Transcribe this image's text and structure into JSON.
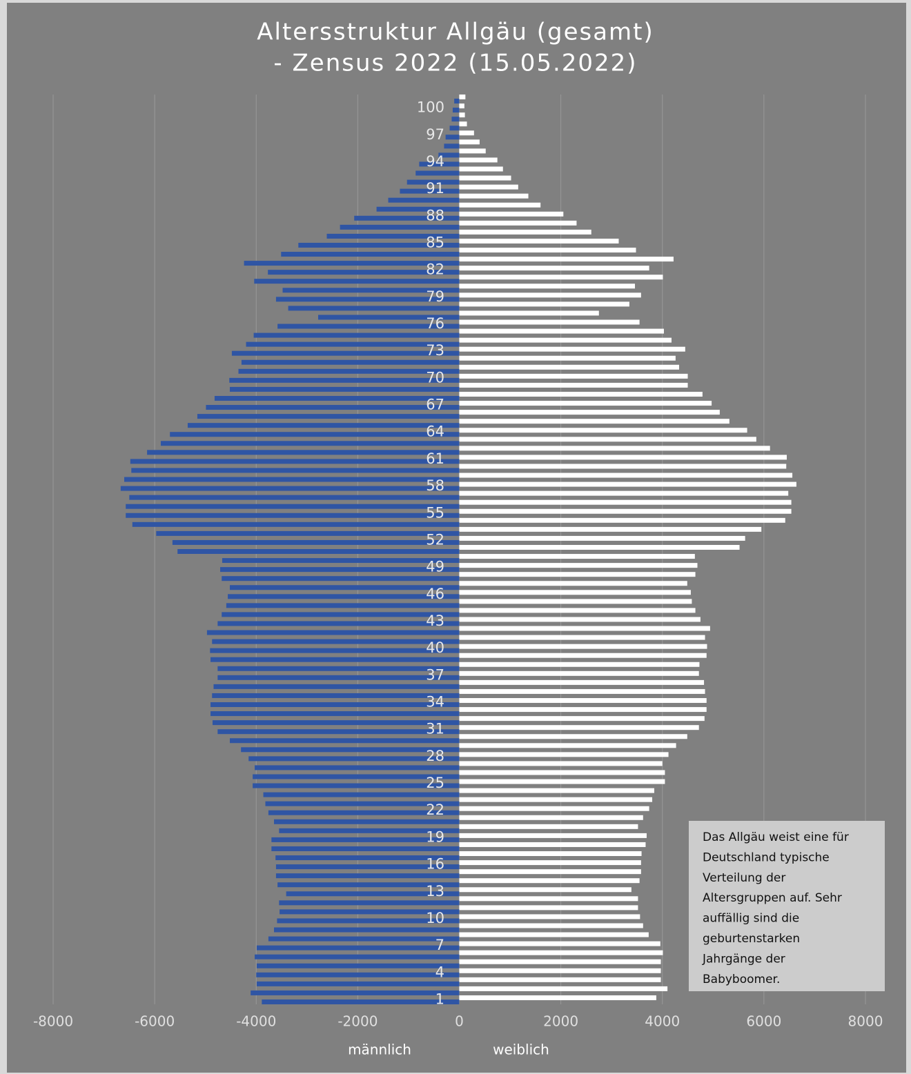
{
  "chart_data": {
    "type": "population-pyramid",
    "title": [
      "Altersstruktur Allgäu (gesamt)",
      "- Zensus 2022 (15.05.2022)"
    ],
    "categories": [
      "1",
      null,
      null,
      "4",
      null,
      null,
      "7",
      null,
      null,
      "10",
      null,
      null,
      "13",
      null,
      null,
      "16",
      null,
      null,
      "19",
      null,
      null,
      "22",
      null,
      null,
      "25",
      null,
      null,
      "28",
      null,
      null,
      "31",
      null,
      null,
      "34",
      null,
      null,
      "37",
      null,
      null,
      "40",
      null,
      null,
      "43",
      null,
      null,
      "46",
      null,
      null,
      "49",
      null,
      null,
      "52",
      null,
      null,
      "55",
      null,
      null,
      "58",
      null,
      null,
      "61",
      null,
      null,
      "64",
      null,
      null,
      "67",
      null,
      null,
      "70",
      null,
      null,
      "73",
      null,
      null,
      "76",
      null,
      null,
      "79",
      null,
      null,
      "82",
      null,
      null,
      "85",
      null,
      null,
      "88",
      null,
      null,
      "91",
      null,
      null,
      "94",
      null,
      null,
      "97",
      null,
      null,
      "100",
      null
    ],
    "series": [
      {
        "name": "männlich",
        "color": "#2f55a4",
        "values": [
          -3890,
          -4110,
          -3990,
          -4000,
          -3990,
          -4030,
          -3990,
          -3760,
          -3650,
          -3590,
          -3540,
          -3550,
          -3410,
          -3580,
          -3610,
          -3610,
          -3620,
          -3700,
          -3700,
          -3550,
          -3650,
          -3760,
          -3820,
          -3860,
          -4070,
          -4070,
          -4030,
          -4150,
          -4300,
          -4520,
          -4760,
          -4860,
          -4900,
          -4900,
          -4870,
          -4840,
          -4760,
          -4760,
          -4900,
          -4910,
          -4870,
          -4970,
          -4760,
          -4680,
          -4590,
          -4560,
          -4520,
          -4680,
          -4710,
          -4670,
          -5550,
          -5650,
          -5970,
          -6440,
          -6570,
          -6570,
          -6500,
          -6670,
          -6600,
          -6460,
          -6480,
          -6150,
          -5880,
          -5700,
          -5350,
          -5160,
          -4990,
          -4820,
          -4520,
          -4530,
          -4350,
          -4290,
          -4480,
          -4200,
          -4050,
          -3580,
          -2780,
          -3370,
          -3610,
          -3480,
          -4040,
          -3770,
          -4240,
          -3510,
          -3170,
          -2610,
          -2350,
          -2070,
          -1630,
          -1400,
          -1170,
          -1030,
          -860,
          -790,
          -410,
          -300,
          -270,
          -190,
          -150,
          -130,
          -100
        ]
      },
      {
        "name": "weiblich",
        "color": "#ffffff",
        "values": [
          3880,
          4100,
          3970,
          3970,
          3970,
          4010,
          3960,
          3730,
          3620,
          3560,
          3520,
          3520,
          3390,
          3550,
          3580,
          3580,
          3590,
          3670,
          3690,
          3520,
          3620,
          3740,
          3800,
          3840,
          4050,
          4050,
          4000,
          4120,
          4270,
          4490,
          4720,
          4830,
          4870,
          4870,
          4840,
          4820,
          4720,
          4730,
          4870,
          4880,
          4840,
          4940,
          4750,
          4650,
          4580,
          4560,
          4490,
          4650,
          4690,
          4640,
          5520,
          5630,
          5950,
          6420,
          6540,
          6540,
          6480,
          6640,
          6560,
          6440,
          6450,
          6120,
          5850,
          5670,
          5320,
          5130,
          4970,
          4790,
          4500,
          4500,
          4330,
          4260,
          4450,
          4180,
          4030,
          3550,
          2750,
          3350,
          3580,
          3460,
          4010,
          3740,
          4220,
          3480,
          3140,
          2600,
          2310,
          2050,
          1600,
          1360,
          1160,
          1020,
          860,
          750,
          520,
          400,
          290,
          150,
          110,
          100,
          120
        ]
      }
    ],
    "xlim": [
      -8000,
      8000
    ],
    "xticks": [
      -8000,
      -6000,
      -4000,
      -2000,
      0,
      2000,
      4000,
      6000,
      8000
    ],
    "grid": true,
    "annotation": [
      "Das Allgäu weist eine für",
      "Deutschland typische",
      "Verteilung der",
      "Altersgruppen auf. Sehr",
      "auffällig sind die",
      "geburtenstarken",
      "Jahrgänge der",
      "Babyboomer."
    ]
  }
}
